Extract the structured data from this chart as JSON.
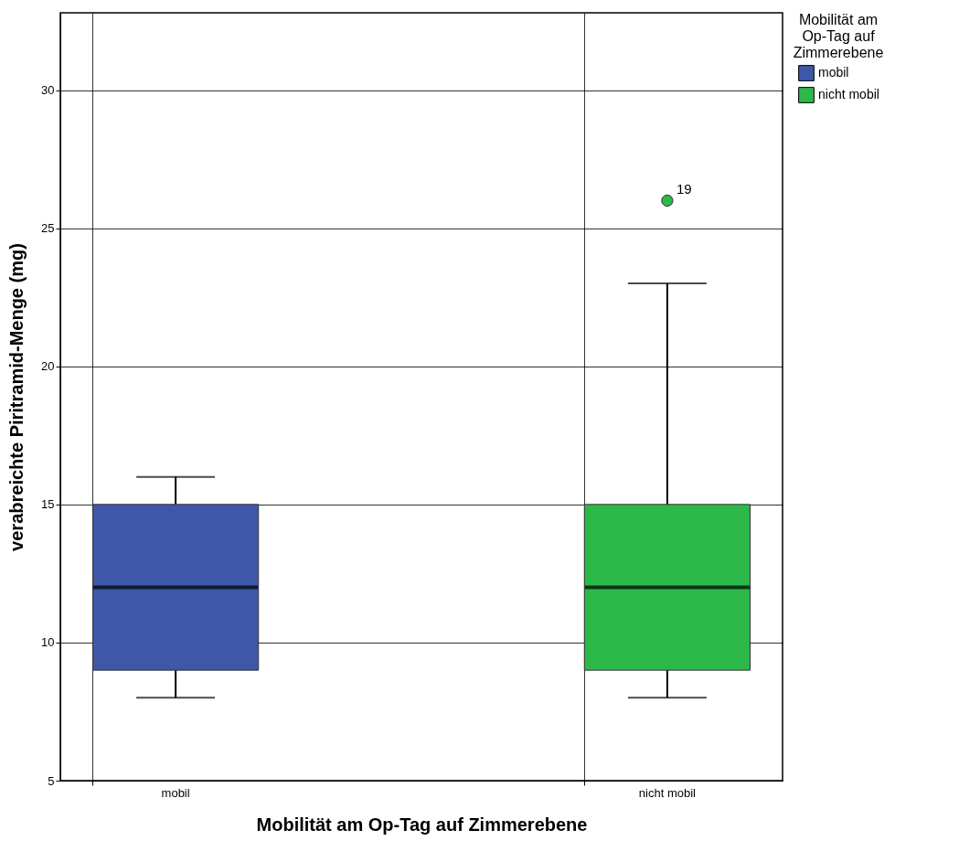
{
  "chart_data": {
    "type": "box",
    "xlabel": "Mobilität am Op-Tag auf Zimmerebene",
    "ylabel": "verabreichte Piritramid-Menge (mg)",
    "legend_title": "Mobilität am Op-Tag auf Zimmerebene",
    "categories": [
      "mobil",
      "nicht mobil"
    ],
    "series": [
      {
        "name": "mobil",
        "color": "#3f57a8",
        "boxes": [
          {
            "low": 8,
            "q1": 9,
            "median": 12,
            "q3": 15,
            "high": 16
          },
          null
        ]
      },
      {
        "name": "nicht mobil",
        "color": "#2db84a",
        "boxes": [
          null,
          {
            "low": 8,
            "q1": 9,
            "median": 12,
            "q3": 15,
            "high": 23,
            "outliers": [
              26
            ]
          }
        ]
      }
    ],
    "annotations": [
      "19"
    ],
    "ylim": [
      5,
      32.8
    ],
    "yticks": [
      5,
      10,
      15,
      20,
      25,
      30
    ],
    "grid": true,
    "legend": "top right"
  }
}
